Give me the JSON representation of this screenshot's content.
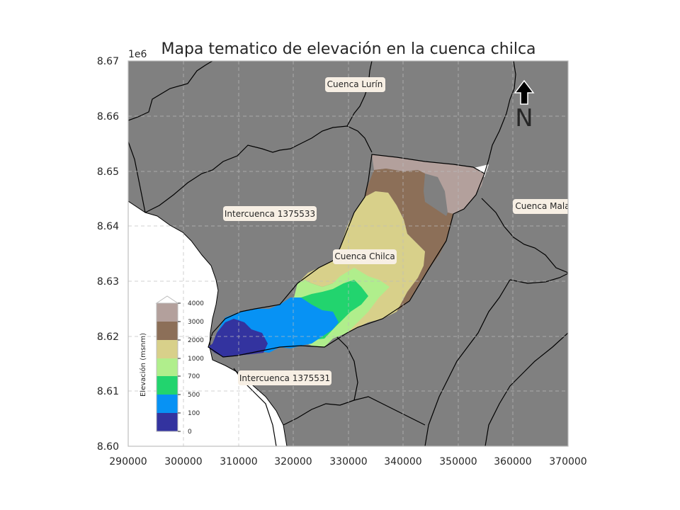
{
  "map": {
    "title": "Mapa tematico de elevación en la cuenca chilca",
    "y_offset_label": "1e6",
    "x_ticks": [
      "290000",
      "300000",
      "310000",
      "320000",
      "330000",
      "340000",
      "350000",
      "360000",
      "370000"
    ],
    "y_ticks": [
      "8.67",
      "8.66",
      "8.65",
      "8.64",
      "8.63",
      "8.62",
      "8.61",
      "8.60"
    ],
    "xlim": [
      290000,
      370000
    ],
    "ylim": [
      8600000,
      8670000
    ],
    "north_arrow_label": "N"
  },
  "labels": {
    "lurin": "Cuenca Lurín",
    "interc_533": "Intercuenca 1375533",
    "chilca": "Cuenca Chilca",
    "mala": "Cuenca Mala",
    "interc_531": "Intercuenca 1375531"
  },
  "legend": {
    "title": "Elevación (msnm)",
    "levels": [
      "4000",
      "3000",
      "2000",
      "1000",
      "700",
      "500",
      "100",
      "0"
    ],
    "colors": [
      "#b3a09c",
      "#8c6f58",
      "#d8d08a",
      "#b0ee8c",
      "#22d46e",
      "#0792f4",
      "#33339f"
    ]
  },
  "colors": {
    "basin_fill": "#808080",
    "sea": "#ffffff",
    "label_box": "#f7efe4"
  }
}
